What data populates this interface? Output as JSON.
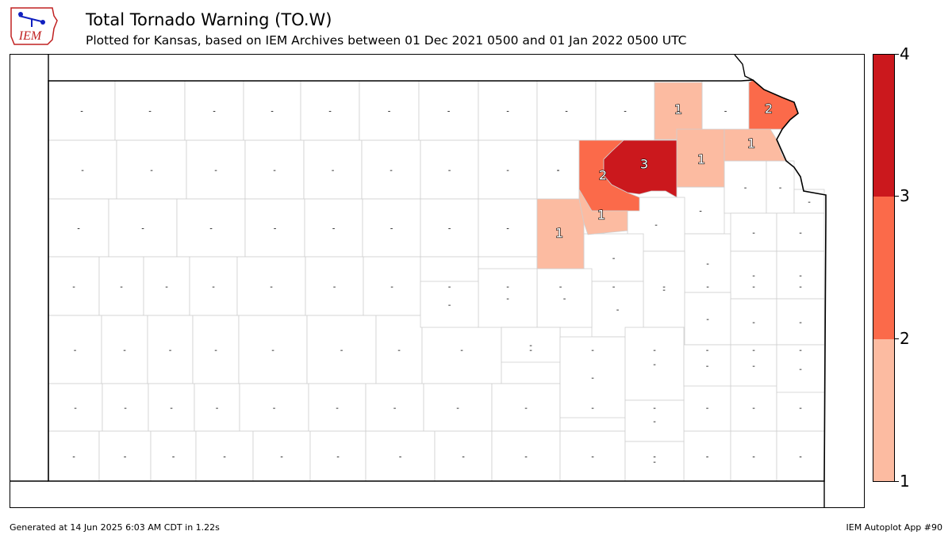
{
  "header": {
    "logo_text": "IEM",
    "title": "Total Tornado Warning (TO.W)",
    "subtitle": "Plotted for Kansas, based on IEM Archives  between 01 Dec 2021 0500 and 01 Jan 2022 0500 UTC"
  },
  "colors": {
    "bin_1": "#fcbba1",
    "bin_2": "#fb6a4a",
    "bin_3": "#cb181d",
    "empty": "#ffffff",
    "county_border": "#cfcfcf",
    "state_border": "#000000"
  },
  "colorbar": {
    "labels": [
      "1",
      "2",
      "3",
      "4"
    ],
    "colors": [
      "#fcbba1",
      "#fb6a4a",
      "#cb181d"
    ]
  },
  "map": {
    "no_data_label": "-",
    "highlighted_counties": [
      {
        "count": 1,
        "bin": 1
      },
      {
        "count": 2,
        "bin": 2
      },
      {
        "count": 1,
        "bin": 1
      },
      {
        "count": 1,
        "bin": 1
      },
      {
        "count": 2,
        "bin": 2
      },
      {
        "count": 3,
        "bin": 3
      },
      {
        "count": 1,
        "bin": 1
      },
      {
        "count": 1,
        "bin": 1
      }
    ]
  },
  "footer": {
    "generated": "Generated at 14 Jun 2025 6:03 AM CDT in 1.22s",
    "app": "IEM Autoplot App #90"
  }
}
